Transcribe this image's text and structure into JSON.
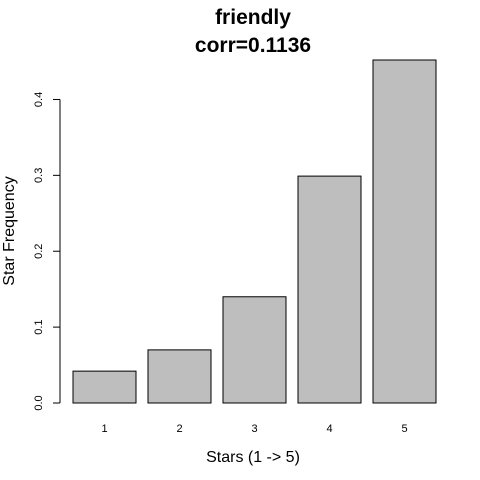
{
  "chart_data": {
    "type": "bar",
    "title": "friendly",
    "subtitle": "corr=0.1136",
    "xlabel": "Stars (1 -> 5)",
    "ylabel": "Star Frequency",
    "categories": [
      "1",
      "2",
      "3",
      "4",
      "5"
    ],
    "values": [
      0.042,
      0.07,
      0.14,
      0.299,
      0.452
    ],
    "yticks": [
      "0.0",
      "0.1",
      "0.2",
      "0.3",
      "0.4"
    ],
    "ytick_values": [
      0.0,
      0.1,
      0.2,
      0.3,
      0.4
    ],
    "ylim": [
      0,
      0.452
    ],
    "grid": false,
    "legend": "none",
    "bar_color": "#bebebe",
    "edge_color": "#000000"
  }
}
